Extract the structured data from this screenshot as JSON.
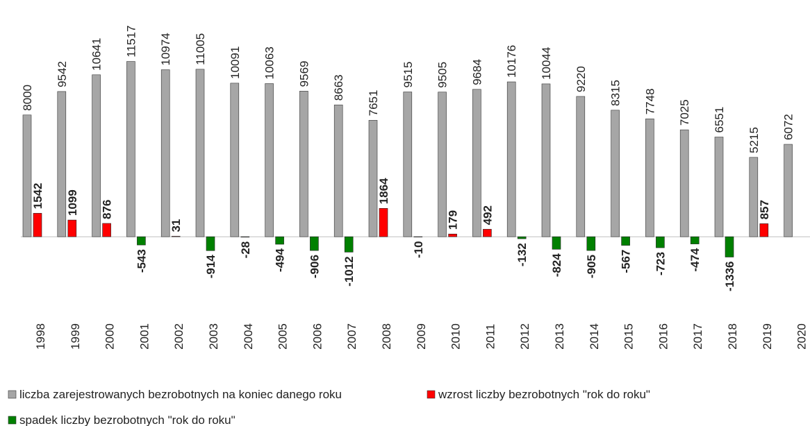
{
  "chart_data": {
    "type": "bar",
    "categories": [
      "1998",
      "1999",
      "2000",
      "2001",
      "2002",
      "2003",
      "2004",
      "2005",
      "2006",
      "2007",
      "2008",
      "2009",
      "2010",
      "2011",
      "2012",
      "2013",
      "2014",
      "2015",
      "2016",
      "2017",
      "2018",
      "2019",
      "2020"
    ],
    "series": [
      {
        "name": "liczba zarejestrowanych bezrobotnych na koniec danego roku",
        "color": "#a6a6a6",
        "values": [
          8000,
          9542,
          10641,
          11517,
          10974,
          11005,
          10091,
          10063,
          9569,
          8663,
          7651,
          9515,
          9505,
          9684,
          10176,
          10044,
          9220,
          8315,
          7748,
          7025,
          6551,
          5215,
          6072
        ]
      },
      {
        "name": "wzrost liczby bezrobotnych \"rok do roku\"",
        "color": "#ff0000",
        "values": [
          1542,
          1099,
          876,
          null,
          31,
          null,
          null,
          null,
          null,
          null,
          1864,
          null,
          179,
          492,
          null,
          null,
          null,
          null,
          null,
          null,
          null,
          857,
          null
        ]
      },
      {
        "name": "spadek liczby bezrobotnych \"rok do roku\"",
        "color": "#008000",
        "values": [
          null,
          null,
          null,
          -543,
          null,
          -914,
          -28,
          -494,
          -906,
          -1012,
          null,
          -10,
          null,
          null,
          -132,
          -824,
          -905,
          -567,
          -723,
          -474,
          -1336,
          null,
          null
        ]
      }
    ],
    "ylim": [
      -3000,
      12000
    ]
  }
}
